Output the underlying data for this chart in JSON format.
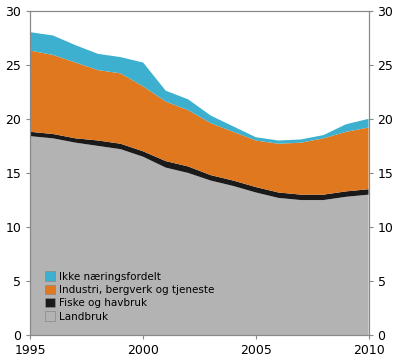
{
  "years": [
    1995,
    1996,
    1997,
    1998,
    1999,
    2000,
    2001,
    2002,
    2003,
    2004,
    2005,
    2006,
    2007,
    2008,
    2009,
    2010
  ],
  "landbruk": [
    18.4,
    18.2,
    17.8,
    17.5,
    17.2,
    16.5,
    15.5,
    15.0,
    14.3,
    13.8,
    13.2,
    12.7,
    12.5,
    12.5,
    12.8,
    13.0
  ],
  "fiske": [
    0.4,
    0.4,
    0.4,
    0.5,
    0.5,
    0.5,
    0.6,
    0.6,
    0.5,
    0.5,
    0.5,
    0.5,
    0.5,
    0.5,
    0.5,
    0.5
  ],
  "industri": [
    7.5,
    7.3,
    7.0,
    6.5,
    6.5,
    6.0,
    5.5,
    5.2,
    4.8,
    4.5,
    4.3,
    4.5,
    4.8,
    5.2,
    5.5,
    5.7
  ],
  "ikke_naerings": [
    1.7,
    1.8,
    1.6,
    1.5,
    1.5,
    2.2,
    1.0,
    1.0,
    0.7,
    0.5,
    0.3,
    0.3,
    0.3,
    0.3,
    0.7,
    0.8
  ],
  "colors": {
    "landbruk": "#b3b3b3",
    "fiske": "#1a1a1a",
    "industri": "#e07820",
    "ikke_naerings": "#3db0d0"
  },
  "legend_labels": [
    "Ikke næringsfordelt",
    "Industri, bergverk og tjeneste",
    "Fiske og havbruk",
    "Landbruk"
  ],
  "ylim": [
    0,
    30
  ],
  "xlim": [
    1995,
    2010
  ],
  "yticks": [
    0,
    5,
    10,
    15,
    20,
    25,
    30
  ],
  "xticks": [
    1995,
    2000,
    2005,
    2010
  ],
  "background_color": "#ffffff"
}
